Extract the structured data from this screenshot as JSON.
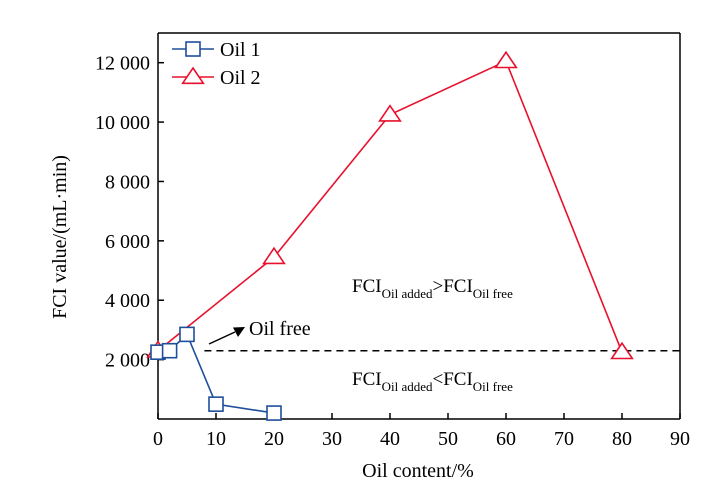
{
  "chart_data": {
    "type": "line",
    "xlabel": "Oil content/%",
    "ylabel": "FCI value/(mL·min)",
    "xlim": [
      0,
      90
    ],
    "ylim": [
      0,
      13000
    ],
    "xticks": [
      0,
      10,
      20,
      30,
      40,
      50,
      60,
      70,
      80,
      90
    ],
    "xtick_labels": [
      "0",
      "10",
      "20",
      "30",
      "40",
      "50",
      "60",
      "70",
      "80",
      "90"
    ],
    "yticks": [
      2000,
      4000,
      6000,
      8000,
      10000,
      12000
    ],
    "ytick_labels": [
      "2 000",
      "4 000",
      "6 000",
      "8 000",
      "10 000",
      "12 000"
    ],
    "grid": false,
    "legend_position": "top-left",
    "series": [
      {
        "name": "Oil 1",
        "marker": "square",
        "color": "#1f4e9c",
        "x": [
          0,
          2,
          5,
          10,
          20
        ],
        "y": [
          2250,
          2300,
          2850,
          500,
          200
        ]
      },
      {
        "name": "Oil 2",
        "marker": "triangle",
        "color": "#e8112d",
        "x": [
          0,
          20,
          40,
          60,
          80
        ],
        "y": [
          2300,
          5450,
          10250,
          12050,
          2250
        ]
      }
    ],
    "reference_line": {
      "y": 2300,
      "style": "dashed",
      "color": "#000000"
    },
    "annotations": {
      "oil_free": {
        "text": "Oil free",
        "x": 7,
        "y": 2300
      },
      "upper": {
        "main1": "FCI",
        "sub1": "Oil added",
        "rel": ">",
        "main2": "FCI",
        "sub2": "Oil free"
      },
      "lower": {
        "main1": "FCI",
        "sub1": "Oil added",
        "rel": "<",
        "main2": "FCI",
        "sub2": "Oil free"
      }
    }
  }
}
